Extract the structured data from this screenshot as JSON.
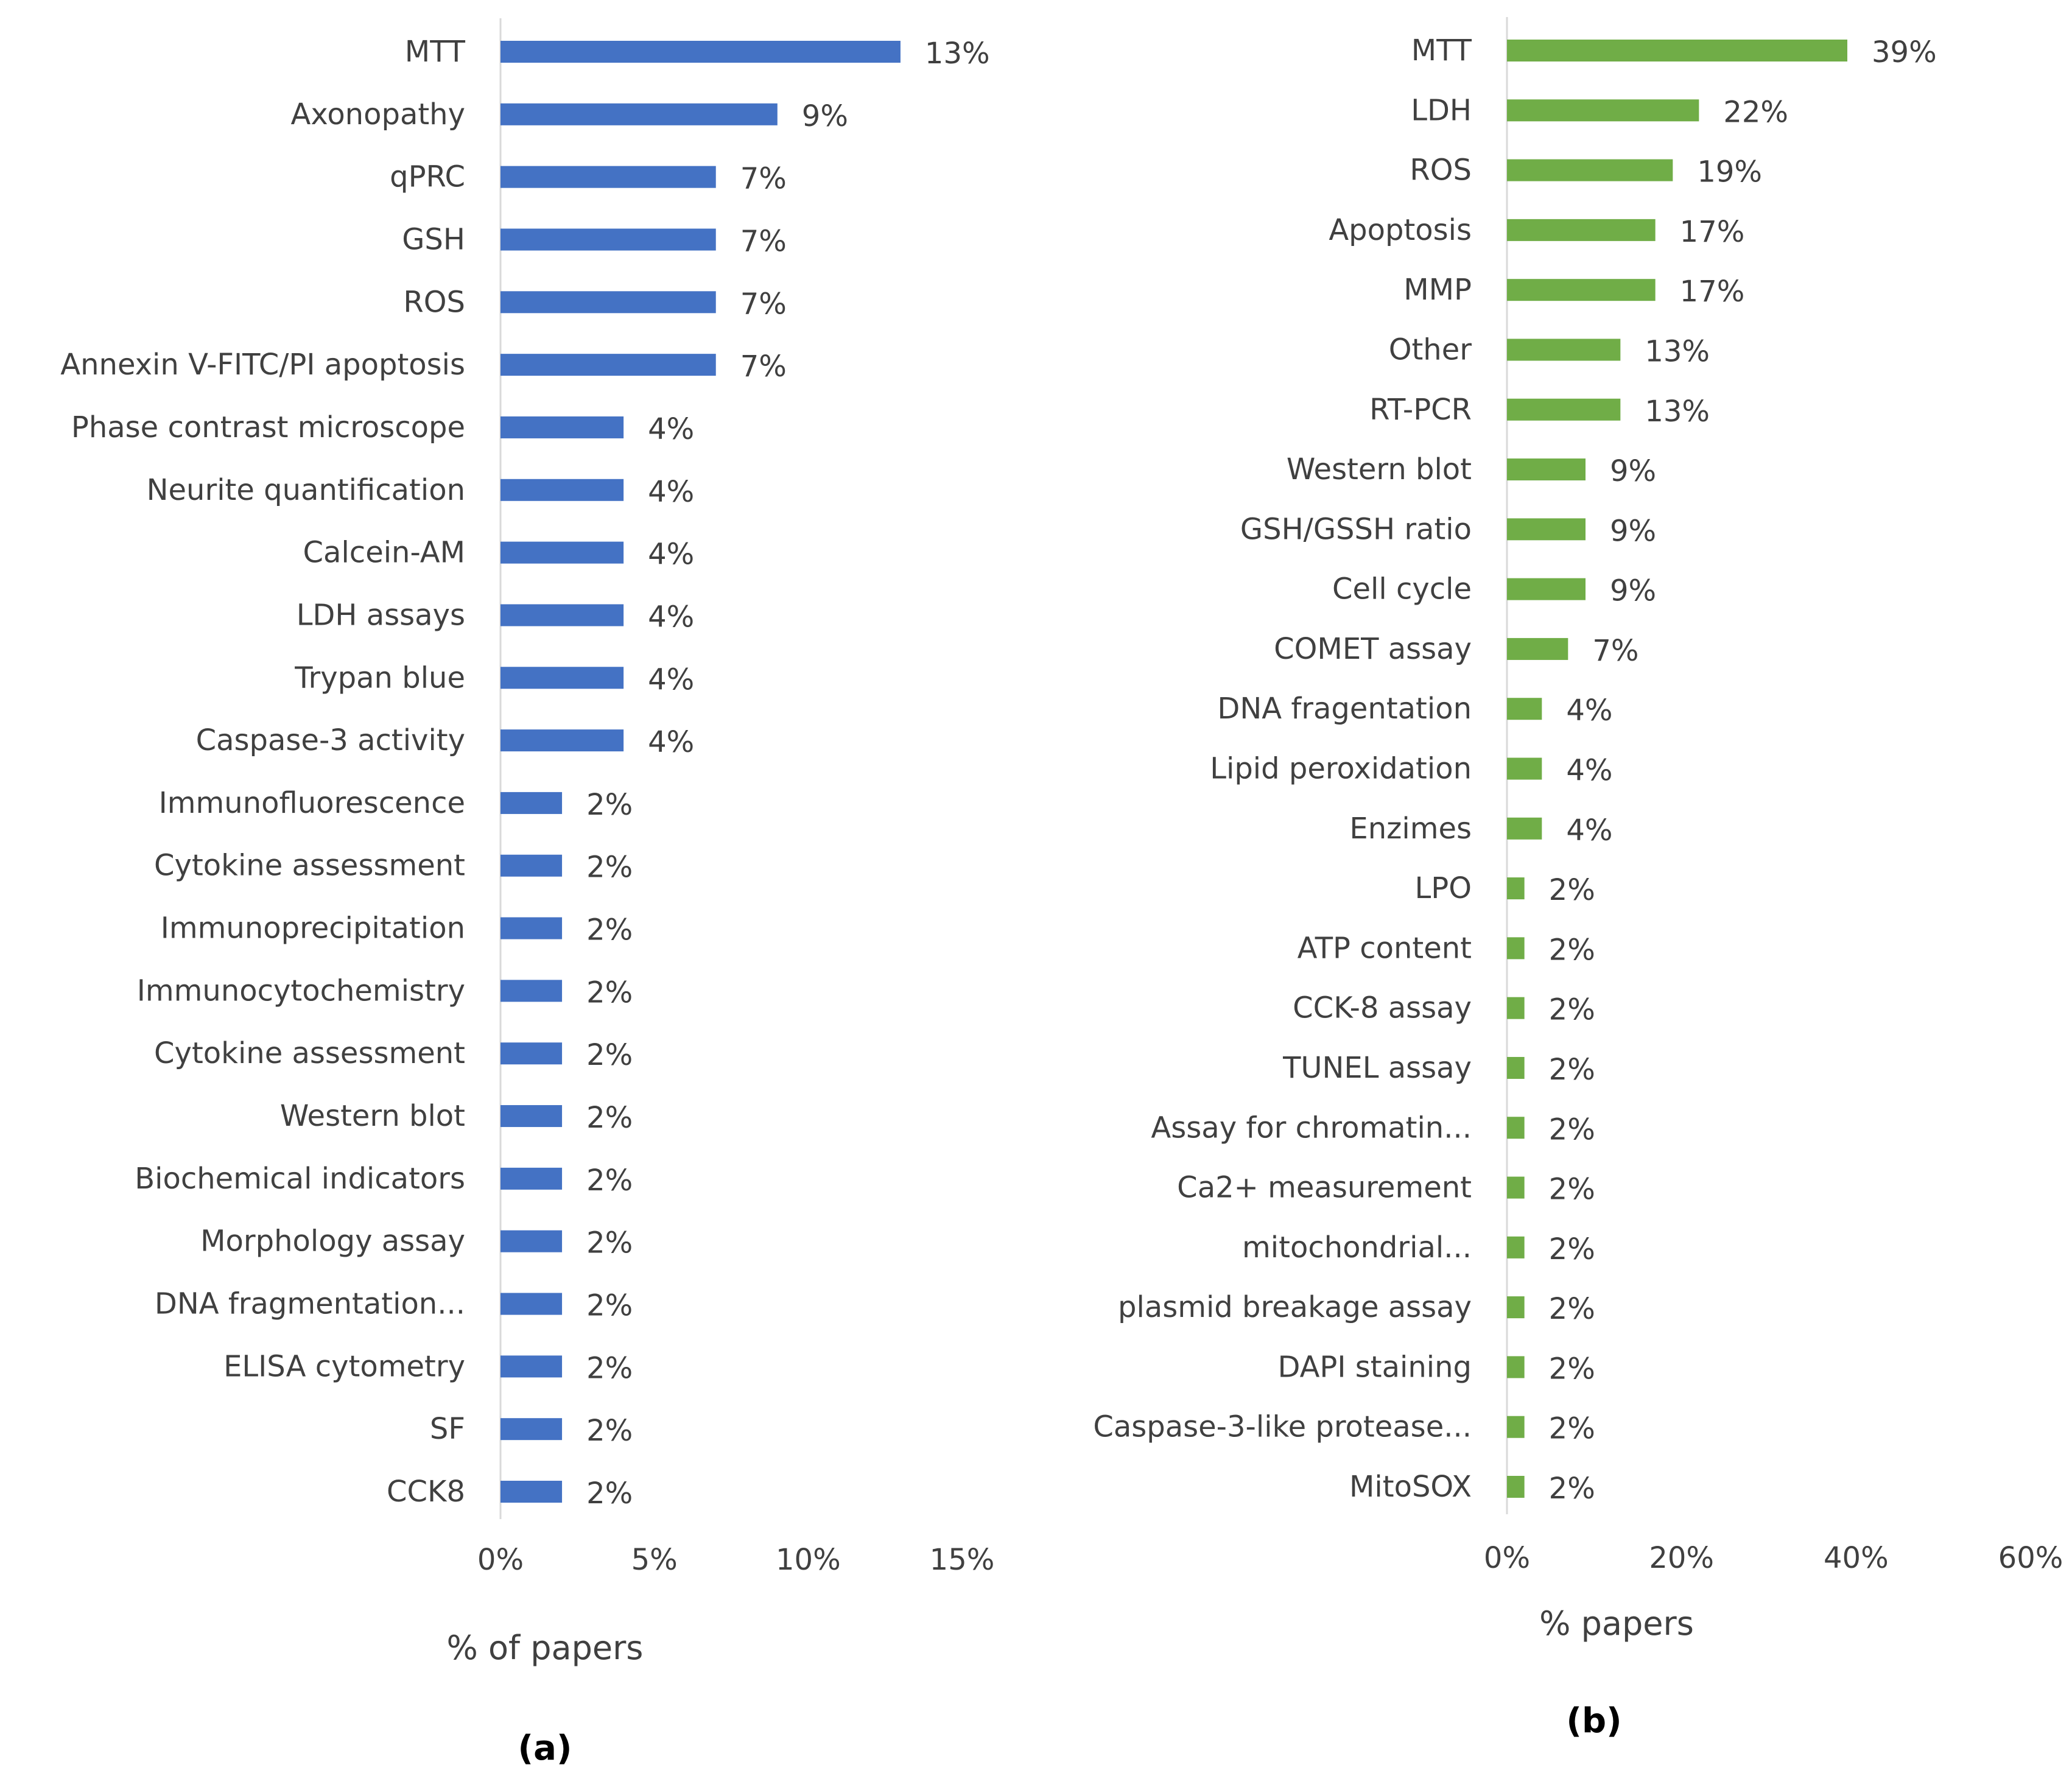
{
  "chart_data": [
    {
      "type": "bar",
      "orientation": "horizontal",
      "panel_label": "(a)",
      "title": "",
      "xlabel": "% of papers",
      "ylabel": "",
      "color": "#4472C4",
      "xlim": [
        0,
        15
      ],
      "x_ticks": [
        0,
        5,
        10,
        15
      ],
      "x_tick_labels": [
        "0%",
        "5%",
        "10%",
        "15%"
      ],
      "grid": false,
      "categories": [
        "MTT",
        "Axonopathy",
        "qPRC",
        "GSH",
        "ROS",
        "Annexin V-FITC/PI apoptosis",
        "Phase contrast microscope",
        "Neurite quantification",
        "Calcein-AM",
        "LDH assays",
        "Trypan blue",
        "Caspase-3 activity",
        "Immunofluorescence",
        "Cytokine assessment",
        "Immunoprecipitation",
        "Immunocytochemistry",
        "Cytokine assessment",
        "Western blot",
        "Biochemical indicators",
        "Morphology assay",
        "DNA fragmentation...",
        "ELISA cytometry",
        "SF",
        "CCK8"
      ],
      "values": [
        13,
        9,
        7,
        7,
        7,
        7,
        4,
        4,
        4,
        4,
        4,
        4,
        2,
        2,
        2,
        2,
        2,
        2,
        2,
        2,
        2,
        2,
        2,
        2
      ],
      "value_labels": [
        "13%",
        "9%",
        "7%",
        "7%",
        "7%",
        "7%",
        "4%",
        "4%",
        "4%",
        "4%",
        "4%",
        "4%",
        "2%",
        "2%",
        "2%",
        "2%",
        "2%",
        "2%",
        "2%",
        "2%",
        "2%",
        "2%",
        "2%",
        "2%"
      ]
    },
    {
      "type": "bar",
      "orientation": "horizontal",
      "panel_label": "(b)",
      "title": "",
      "xlabel": "% papers",
      "ylabel": "",
      "color": "#70AD47",
      "xlim": [
        0,
        60
      ],
      "x_ticks": [
        0,
        20,
        40,
        60
      ],
      "x_tick_labels": [
        "0%",
        "20%",
        "40%",
        "60%"
      ],
      "grid": false,
      "categories": [
        "MTT",
        "LDH",
        "ROS",
        "Apoptosis",
        "MMP",
        "Other",
        "RT-PCR",
        "Western blot",
        "GSH/GSSH ratio",
        "Cell cycle",
        "COMET assay",
        "DNA  fragentation",
        "Lipid peroxidation",
        "Enzimes",
        "LPO",
        "ATP content",
        "CCK-8 assay",
        "TUNEL assay",
        "Assay for chromatin...",
        "Ca2+ measurement",
        "mitochondrial...",
        "plasmid breakage assay",
        "DAPI staining",
        "Caspase-3-like protease...",
        "MitoSOX"
      ],
      "values": [
        39,
        22,
        19,
        17,
        17,
        13,
        13,
        9,
        9,
        9,
        7,
        4,
        4,
        4,
        2,
        2,
        2,
        2,
        2,
        2,
        2,
        2,
        2,
        2,
        2
      ],
      "value_labels": [
        "39%",
        "22%",
        "19%",
        "17%",
        "17%",
        "13%",
        "13%",
        "9%",
        "9%",
        "9%",
        "7%",
        "4%",
        "4%",
        "4%",
        "2%",
        "2%",
        "2%",
        "2%",
        "2%",
        "2%",
        "2%",
        "2%",
        "2%",
        "2%",
        "2%"
      ]
    }
  ]
}
